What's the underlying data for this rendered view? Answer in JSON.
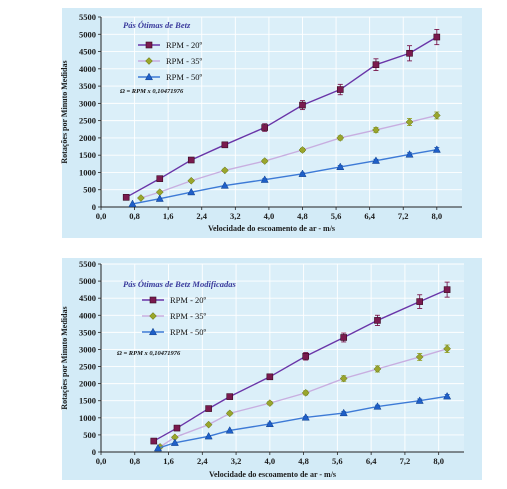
{
  "colors": {
    "panel_bg": "#d3ebf7",
    "plot_bg": "#dbeff9",
    "grid": "#ffffff",
    "axis": "#222222",
    "title": "#3a3a9c"
  },
  "chart_data": [
    {
      "type": "line",
      "title": "Pás Ótimas de Betz",
      "xlabel": "Velocidade do escoamento de ar - m/s",
      "ylabel": "Rotações por Minuto Medidas",
      "annotation": "Ω = RPM x 0,10471976",
      "legend_position": "top-left",
      "grid": true,
      "xlim": [
        0,
        8.6
      ],
      "ylim": [
        0,
        5500
      ],
      "x_ticks": [
        "0,0",
        "0,8",
        "1,6",
        "2,4",
        "3,2",
        "4,0",
        "4,8",
        "5,6",
        "6,4",
        "7,2",
        "8,0"
      ],
      "y_ticks": [
        "0",
        "500",
        "1000",
        "1500",
        "2000",
        "2500",
        "3000",
        "3500",
        "4000",
        "4500",
        "5000",
        "5500"
      ],
      "series": [
        {
          "name": "RPM - 20º",
          "color": "#7a1a4e",
          "line_color": "#6a35a8",
          "marker": "square",
          "x": [
            0.6,
            1.4,
            2.15,
            2.95,
            3.9,
            4.8,
            5.7,
            6.55,
            7.35,
            8.0
          ],
          "y": [
            280,
            820,
            1360,
            1800,
            2300,
            2950,
            3400,
            4120,
            4450,
            4920
          ],
          "err": [
            0,
            40,
            50,
            60,
            110,
            130,
            150,
            170,
            220,
            220
          ]
        },
        {
          "name": "RPM - 35º",
          "color": "#9aa62c",
          "line_color": "#c8aee0",
          "marker": "diamond",
          "x": [
            0.95,
            1.4,
            2.15,
            2.95,
            3.9,
            4.8,
            5.7,
            6.55,
            7.35,
            8.0
          ],
          "y": [
            260,
            430,
            760,
            1060,
            1330,
            1650,
            2000,
            2230,
            2460,
            2650
          ],
          "err": [
            0,
            0,
            0,
            40,
            40,
            50,
            60,
            70,
            100,
            100
          ]
        },
        {
          "name": "RPM - 50º",
          "color": "#1f5fc8",
          "line_color": "#3d7ad6",
          "marker": "triangle",
          "x": [
            0.75,
            1.4,
            2.15,
            2.95,
            3.9,
            4.8,
            5.7,
            6.55,
            7.35,
            8.0
          ],
          "y": [
            90,
            240,
            430,
            620,
            790,
            960,
            1160,
            1340,
            1520,
            1660
          ],
          "err": [
            0,
            0,
            0,
            0,
            30,
            30,
            40,
            40,
            50,
            60
          ]
        }
      ]
    },
    {
      "type": "line",
      "title": "Pás Ótimas de Betz Modificadas",
      "xlabel": "Velocidade do escoamento de ar - m/s",
      "ylabel": "Rotações por Minuto Medidas",
      "annotation": "Ω = RPM x 0,10471976",
      "legend_position": "top-left",
      "grid": true,
      "xlim": [
        0,
        8.6
      ],
      "ylim": [
        0,
        5500
      ],
      "x_ticks": [
        "0,0",
        "0,8",
        "1,6",
        "2,4",
        "3,2",
        "4,0",
        "4,8",
        "5,6",
        "6,4",
        "7,2",
        "8,0"
      ],
      "y_ticks": [
        "0",
        "500",
        "1000",
        "1500",
        "2000",
        "2500",
        "3000",
        "3500",
        "4000",
        "4500",
        "5000",
        "5500"
      ],
      "series": [
        {
          "name": "RPM - 20º",
          "color": "#7a1a4e",
          "line_color": "#6a35a8",
          "marker": "square",
          "x": [
            1.25,
            1.8,
            2.55,
            3.05,
            4.0,
            4.85,
            5.75,
            6.55,
            7.55,
            8.2
          ],
          "y": [
            320,
            700,
            1270,
            1620,
            2200,
            2800,
            3350,
            3850,
            4400,
            4750
          ],
          "err": [
            0,
            0,
            40,
            60,
            80,
            110,
            130,
            150,
            200,
            220
          ]
        },
        {
          "name": "RPM - 35º",
          "color": "#9aa62c",
          "line_color": "#c8aee0",
          "marker": "diamond",
          "x": [
            1.4,
            1.75,
            2.55,
            3.05,
            4.0,
            4.85,
            5.75,
            6.55,
            7.55,
            8.2
          ],
          "y": [
            150,
            430,
            800,
            1130,
            1430,
            1730,
            2150,
            2430,
            2780,
            3020
          ],
          "err": [
            0,
            0,
            0,
            40,
            50,
            60,
            80,
            90,
            100,
            110
          ]
        },
        {
          "name": "RPM - 50º",
          "color": "#1f5fc8",
          "line_color": "#3d7ad6",
          "marker": "triangle",
          "x": [
            1.35,
            1.75,
            2.55,
            3.05,
            4.0,
            4.85,
            5.75,
            6.55,
            7.55,
            8.2
          ],
          "y": [
            110,
            270,
            460,
            630,
            820,
            1010,
            1140,
            1330,
            1500,
            1630
          ],
          "err": [
            0,
            0,
            0,
            0,
            30,
            30,
            40,
            40,
            50,
            50
          ]
        }
      ]
    }
  ]
}
